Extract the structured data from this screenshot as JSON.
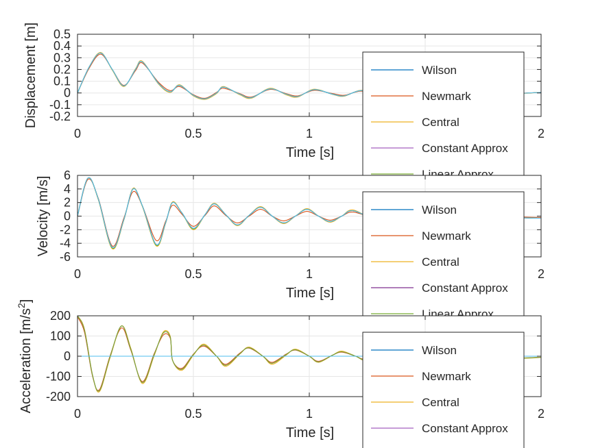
{
  "chart_data": [
    {
      "type": "line",
      "xlabel": "Time [s]",
      "ylabel": "Displacement [m]",
      "xlim": [
        0,
        2
      ],
      "ylim": [
        -0.2,
        0.5
      ],
      "xticks": [
        0,
        0.5,
        1,
        1.5,
        2
      ],
      "yticks": [
        -0.2,
        -0.1,
        0,
        0.1,
        0.2,
        0.3,
        0.4,
        0.5
      ],
      "xtick_labels": [
        "0",
        "0.5",
        "1",
        "",
        "2"
      ],
      "ytick_labels": [
        "-0.2",
        "-0.1",
        "0",
        "0.1",
        "0.2",
        "0.3",
        "0.4",
        "0.5"
      ],
      "grid": true,
      "legend_position": "right",
      "x": [
        0,
        0.05,
        0.1,
        0.15,
        0.2,
        0.25,
        0.28,
        0.35,
        0.4,
        0.44,
        0.5,
        0.55,
        0.6,
        0.63,
        0.7,
        0.75,
        0.83,
        0.9,
        0.95,
        1.02,
        1.1,
        1.15,
        1.22,
        1.3,
        1.35,
        1.42,
        1.5,
        1.6,
        1.7,
        1.8,
        1.9,
        2.0
      ],
      "series": [
        {
          "name": "Wilson",
          "color": "#0072bd",
          "values": [
            0,
            0.22,
            0.34,
            0.2,
            0.06,
            0.2,
            0.265,
            0.08,
            0.01,
            0.065,
            -0.02,
            -0.05,
            0.0,
            0.05,
            -0.01,
            -0.04,
            0.035,
            -0.01,
            -0.03,
            0.028,
            -0.01,
            -0.025,
            0.02,
            -0.005,
            -0.018,
            0.015,
            -0.005,
            0.01,
            -0.005,
            0.008,
            -0.003,
            0.005
          ]
        },
        {
          "name": "Newmark",
          "color": "#d95319",
          "values": [
            0,
            0.21,
            0.33,
            0.2,
            0.065,
            0.19,
            0.255,
            0.09,
            0.02,
            0.055,
            -0.015,
            -0.045,
            0.005,
            0.04,
            -0.005,
            -0.035,
            0.03,
            -0.005,
            -0.025,
            0.022,
            -0.005,
            -0.02,
            0.015,
            -0.003,
            -0.014,
            0.012,
            -0.004,
            0.008,
            -0.004,
            0.006,
            -0.002,
            0.004
          ]
        },
        {
          "name": "Central",
          "color": "#edb120",
          "values": [
            0,
            0.22,
            0.345,
            0.195,
            0.055,
            0.205,
            0.27,
            0.075,
            0.005,
            0.07,
            -0.025,
            -0.055,
            -0.005,
            0.055,
            -0.015,
            -0.045,
            0.04,
            -0.015,
            -0.035,
            0.032,
            -0.012,
            -0.028,
            0.022,
            -0.007,
            -0.02,
            0.017,
            -0.006,
            0.011,
            -0.006,
            0.009,
            -0.004,
            0.005
          ]
        },
        {
          "name": "Constant Approx",
          "color": "#a45fbf",
          "values": [
            0,
            0.22,
            0.34,
            0.2,
            0.06,
            0.2,
            0.265,
            0.08,
            0.01,
            0.065,
            -0.02,
            -0.05,
            0.0,
            0.05,
            -0.01,
            -0.04,
            0.035,
            -0.01,
            -0.03,
            0.028,
            -0.01,
            -0.025,
            0.02,
            -0.005,
            -0.018,
            0.015,
            -0.005,
            0.01,
            -0.005,
            0.008,
            -0.003,
            0.005
          ]
        },
        {
          "name": "Linear Approx",
          "color": "#77ac30",
          "values": [
            0,
            0.22,
            0.34,
            0.2,
            0.06,
            0.2,
            0.265,
            0.08,
            0.01,
            0.065,
            -0.02,
            -0.05,
            0.0,
            0.05,
            -0.01,
            -0.04,
            0.035,
            -0.01,
            -0.03,
            0.028,
            -0.01,
            -0.025,
            0.02,
            -0.005,
            -0.018,
            0.015,
            -0.005,
            0.01,
            -0.005,
            0.008,
            -0.003,
            0.005
          ]
        },
        {
          "name": "",
          "color": "#4dbeee",
          "values": [
            0,
            0.22,
            0.34,
            0.2,
            0.06,
            0.2,
            0.265,
            0.08,
            0.01,
            0.065,
            -0.02,
            -0.05,
            0.0,
            0.05,
            -0.01,
            -0.04,
            0.035,
            -0.01,
            -0.03,
            0.028,
            -0.01,
            -0.025,
            0.02,
            -0.005,
            -0.018,
            0.015,
            -0.005,
            0.01,
            -0.005,
            0.008,
            -0.003,
            0.005
          ]
        }
      ]
    },
    {
      "type": "line",
      "xlabel": "Time [s]",
      "ylabel": "Velocity [m/s]",
      "xlim": [
        0,
        2
      ],
      "ylim": [
        -6,
        6
      ],
      "xticks": [
        0,
        0.5,
        1,
        1.5,
        2
      ],
      "yticks": [
        -6,
        -4,
        -2,
        0,
        2,
        4,
        6
      ],
      "xtick_labels": [
        "0",
        "0.5",
        "1",
        "",
        "2"
      ],
      "ytick_labels": [
        "-6",
        "-4",
        "-2",
        "0",
        "2",
        "4",
        "6"
      ],
      "grid": true,
      "legend_position": "right",
      "x": [
        0,
        0.045,
        0.09,
        0.15,
        0.2,
        0.24,
        0.28,
        0.34,
        0.38,
        0.41,
        0.45,
        0.5,
        0.55,
        0.59,
        0.64,
        0.69,
        0.74,
        0.79,
        0.84,
        0.89,
        0.94,
        0.99,
        1.04,
        1.09,
        1.14,
        1.19,
        1.3,
        1.4,
        1.5,
        1.6,
        1.7,
        1.8,
        1.9,
        2.0
      ],
      "series": [
        {
          "name": "Wilson",
          "color": "#0072bd",
          "values": [
            0,
            5.6,
            2.5,
            -4.6,
            -0.5,
            4.0,
            1.5,
            -4.2,
            -1.0,
            2.0,
            0.5,
            -1.8,
            0.2,
            1.8,
            0.2,
            -1.3,
            0.1,
            1.3,
            0.0,
            -1.0,
            0.0,
            1.0,
            0.0,
            -0.8,
            0.0,
            0.8,
            -0.6,
            0.6,
            -0.4,
            0.4,
            -0.3,
            0.3,
            -0.2,
            -0.3
          ]
        },
        {
          "name": "Newmark",
          "color": "#d95319",
          "values": [
            0,
            5.4,
            2.6,
            -4.4,
            -0.3,
            3.6,
            1.5,
            -3.6,
            -0.8,
            1.6,
            0.3,
            -1.5,
            0.1,
            1.5,
            0.1,
            -1.0,
            0.0,
            1.0,
            0.0,
            -0.7,
            0.0,
            0.7,
            0.0,
            -0.6,
            0.0,
            0.6,
            -0.4,
            0.4,
            -0.3,
            0.3,
            -0.2,
            0.2,
            -0.1,
            -0.2
          ]
        },
        {
          "name": "Central",
          "color": "#edb120",
          "values": [
            0,
            5.6,
            2.4,
            -4.8,
            -0.6,
            4.1,
            1.4,
            -4.4,
            -1.1,
            2.1,
            0.5,
            -2.0,
            0.2,
            1.9,
            0.2,
            -1.4,
            0.1,
            1.4,
            0.0,
            -1.1,
            0.0,
            1.1,
            0.0,
            -0.9,
            0.0,
            0.9,
            -0.7,
            0.7,
            -0.5,
            0.5,
            -0.4,
            0.3,
            -0.2,
            -0.3
          ]
        },
        {
          "name": "Constant Approx",
          "color": "#7e2f8e",
          "values": [
            0,
            5.6,
            2.5,
            -4.6,
            -0.5,
            4.0,
            1.5,
            -4.2,
            -1.0,
            2.0,
            0.5,
            -1.8,
            0.2,
            1.8,
            0.2,
            -1.3,
            0.1,
            1.3,
            0.0,
            -1.0,
            0.0,
            1.0,
            0.0,
            -0.8,
            0.0,
            0.8,
            -0.6,
            0.6,
            -0.4,
            0.4,
            -0.3,
            0.3,
            -0.2,
            -0.3
          ]
        },
        {
          "name": "Linear Approx",
          "color": "#77ac30",
          "values": [
            0,
            5.6,
            2.5,
            -4.7,
            -0.5,
            4.0,
            1.5,
            -4.3,
            -1.0,
            2.0,
            0.5,
            -1.9,
            0.2,
            1.8,
            0.2,
            -1.3,
            0.1,
            1.3,
            0.0,
            -1.0,
            0.0,
            1.0,
            0.0,
            -0.8,
            0.0,
            0.8,
            -0.6,
            0.6,
            -0.4,
            0.4,
            -0.3,
            0.3,
            -0.2,
            -0.3
          ]
        },
        {
          "name": "",
          "color": "#4dbeee",
          "values": [
            0,
            5.6,
            2.5,
            -4.6,
            -0.5,
            4.0,
            1.5,
            -4.2,
            -1.0,
            2.0,
            0.5,
            -1.8,
            0.2,
            1.8,
            0.2,
            -1.3,
            0.1,
            1.3,
            0.0,
            -1.0,
            0.0,
            1.0,
            0.0,
            -0.8,
            0.0,
            0.8,
            -0.6,
            0.6,
            -0.4,
            0.4,
            -0.3,
            0.3,
            -0.2,
            -0.3
          ]
        }
      ]
    },
    {
      "type": "line",
      "xlabel": "Time [s]",
      "ylabel": "Acceleration [m/s",
      "ylabel_superscript": "2",
      "ylabel_suffix": "]",
      "xlim": [
        0,
        2
      ],
      "ylim": [
        -200,
        200
      ],
      "xticks": [
        0,
        0.5,
        1,
        1.5,
        2
      ],
      "yticks": [
        -200,
        -100,
        0,
        100,
        200
      ],
      "xtick_labels": [
        "0",
        "0.5",
        "1",
        "",
        "2"
      ],
      "ytick_labels": [
        "-200",
        "-100",
        "0",
        "100",
        "200"
      ],
      "grid": true,
      "legend_position": "right",
      "x": [
        0,
        0.03,
        0.065,
        0.095,
        0.14,
        0.19,
        0.23,
        0.28,
        0.33,
        0.37,
        0.4,
        0.41,
        0.45,
        0.5,
        0.545,
        0.6,
        0.64,
        0.7,
        0.74,
        0.8,
        0.84,
        0.9,
        0.94,
        1.0,
        1.04,
        1.1,
        1.14,
        1.2,
        1.24,
        1.3,
        1.4,
        1.5,
        1.6,
        1.7,
        1.8,
        1.9,
        2.0
      ],
      "series": [
        {
          "name": "Wilson",
          "color": "#0072bd",
          "values": [
            0,
            0,
            0,
            0,
            0,
            0,
            0,
            0,
            0,
            0,
            0,
            0,
            0,
            0,
            0,
            0,
            0,
            0,
            0,
            0,
            0,
            0,
            0,
            0,
            0,
            0,
            0,
            0,
            0,
            0,
            0,
            0,
            0,
            0,
            0,
            0,
            0
          ]
        },
        {
          "name": "Newmark",
          "color": "#d95319",
          "values": [
            195,
            120,
            -100,
            -165,
            0,
            140,
            30,
            -125,
            10,
            105,
            90,
            -20,
            -60,
            10,
            50,
            0,
            -40,
            15,
            40,
            0,
            -30,
            10,
            30,
            0,
            -25,
            5,
            20,
            0,
            -15,
            5,
            10,
            -8,
            6,
            -6,
            4,
            -8,
            -5
          ]
        },
        {
          "name": "Central",
          "color": "#edb120",
          "values": [
            200,
            135,
            -95,
            -175,
            -10,
            150,
            40,
            -135,
            0,
            120,
            100,
            -20,
            -70,
            5,
            60,
            0,
            -50,
            10,
            45,
            0,
            -40,
            5,
            35,
            0,
            -30,
            5,
            25,
            0,
            -20,
            5,
            15,
            -10,
            8,
            -8,
            5,
            -10,
            -6
          ]
        },
        {
          "name": "Constant Approx",
          "color": "#a45fbf",
          "values": [
            200,
            130,
            -95,
            -170,
            -5,
            150,
            35,
            -130,
            5,
            115,
            95,
            -20,
            -65,
            8,
            55,
            0,
            -45,
            12,
            42,
            0,
            -35,
            8,
            32,
            0,
            -28,
            5,
            22,
            0,
            -18,
            5,
            12,
            -9,
            7,
            -7,
            5,
            -9,
            -5
          ]
        },
        {
          "name": "",
          "color": "#77ac30",
          "values": [
            200,
            130,
            -95,
            -170,
            -5,
            150,
            35,
            -130,
            5,
            115,
            95,
            -20,
            -65,
            8,
            55,
            0,
            -45,
            12,
            42,
            0,
            -35,
            8,
            32,
            0,
            -28,
            5,
            22,
            0,
            -18,
            5,
            12,
            -9,
            7,
            -7,
            5,
            -9,
            -5
          ]
        },
        {
          "name": "",
          "color": "#4dbeee",
          "values": [
            0,
            0,
            0,
            0,
            0,
            0,
            0,
            0,
            0,
            0,
            0,
            0,
            0,
            0,
            0,
            0,
            0,
            0,
            0,
            0,
            0,
            0,
            0,
            0,
            0,
            0,
            0,
            0,
            0,
            0,
            0,
            0,
            0,
            0,
            0,
            0,
            0
          ]
        }
      ]
    }
  ]
}
